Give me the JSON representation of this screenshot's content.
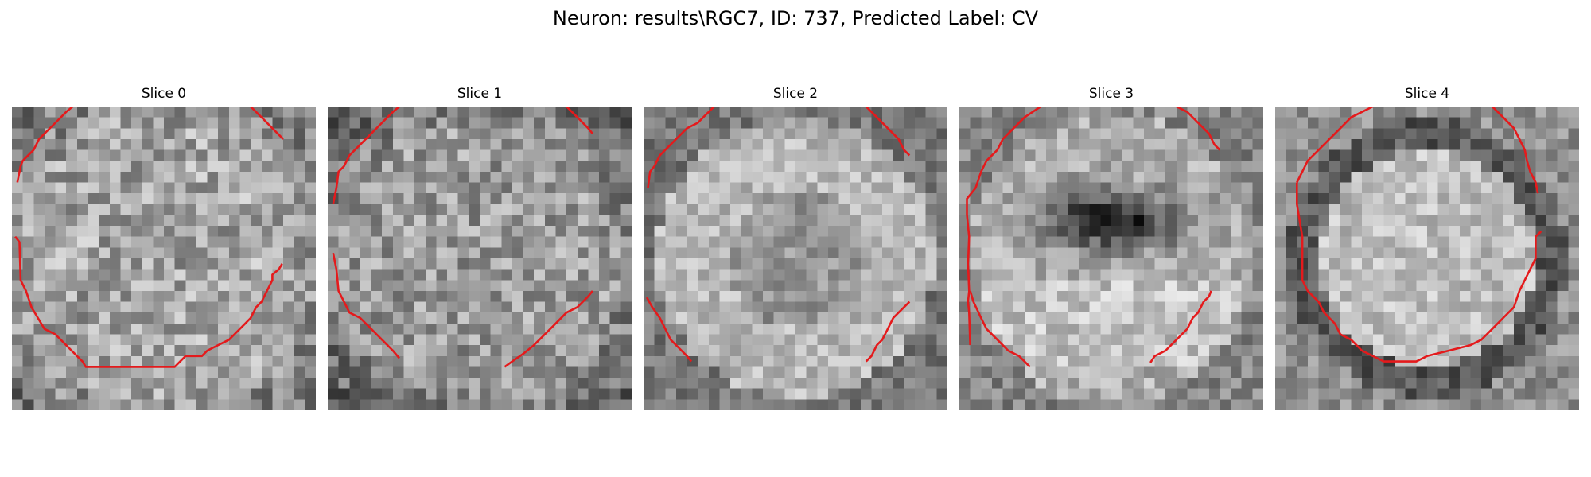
{
  "figure": {
    "title": "Neuron: results\\RGC7, ID: 737, Predicted Label: CV"
  },
  "slices": [
    {
      "title": "Slice 0"
    },
    {
      "title": "Slice 1"
    },
    {
      "title": "Slice 2"
    },
    {
      "title": "Slice 3"
    },
    {
      "title": "Slice 4"
    }
  ],
  "style": {
    "contour_color": "#e41a1c",
    "image_colormap": "grayscale"
  }
}
